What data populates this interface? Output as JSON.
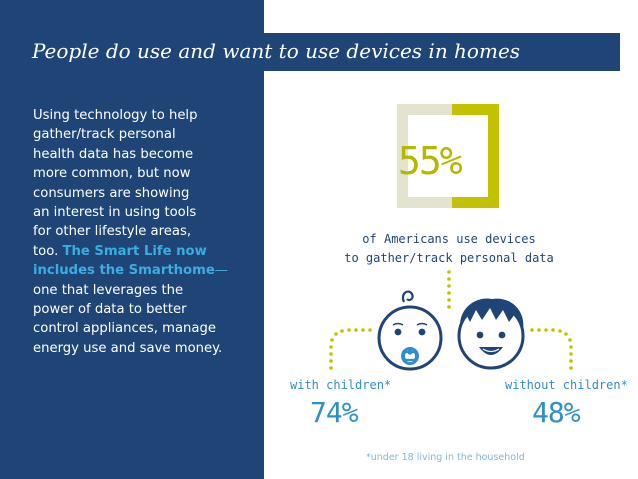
{
  "header": {
    "title": "People do use and want to use devices in homes"
  },
  "body": {
    "lines": [
      "Using technology to help",
      "gather/track personal",
      "health data has become",
      "more common, but now",
      "consumers are showing",
      "an interest in using tools",
      "for other lifestyle areas,"
    ],
    "line_too_plain": "too.",
    "line_too_highlight": "The Smart Life now",
    "line_includes_highlight": "includes the Smarthome",
    "line_includes_dash": "—",
    "tail_lines": [
      "one that leverages the",
      "power of data to better",
      "control appliances, manage",
      "energy use and save money."
    ]
  },
  "stat_main": {
    "value_text": "55%",
    "value": 55,
    "caption_line1": "of Americans use devices",
    "caption_line2": "to gather/track personal data"
  },
  "stat_with": {
    "label": "with children*",
    "value_text": "74%",
    "value": 74
  },
  "stat_without": {
    "label": "without children*",
    "value_text": "48%",
    "value": 48
  },
  "footnote": "*under 18 living in the household",
  "colors": {
    "navy": "#1f4577",
    "olive": "#b5b800",
    "light_olive": "#e3e3cf",
    "blue": "#2e8fc9",
    "highlight": "#3aaee0",
    "dots": "#c2c200",
    "footnote": "#7fb8dc"
  },
  "icons": {
    "baby": "baby-face-icon",
    "child": "child-face-icon"
  }
}
